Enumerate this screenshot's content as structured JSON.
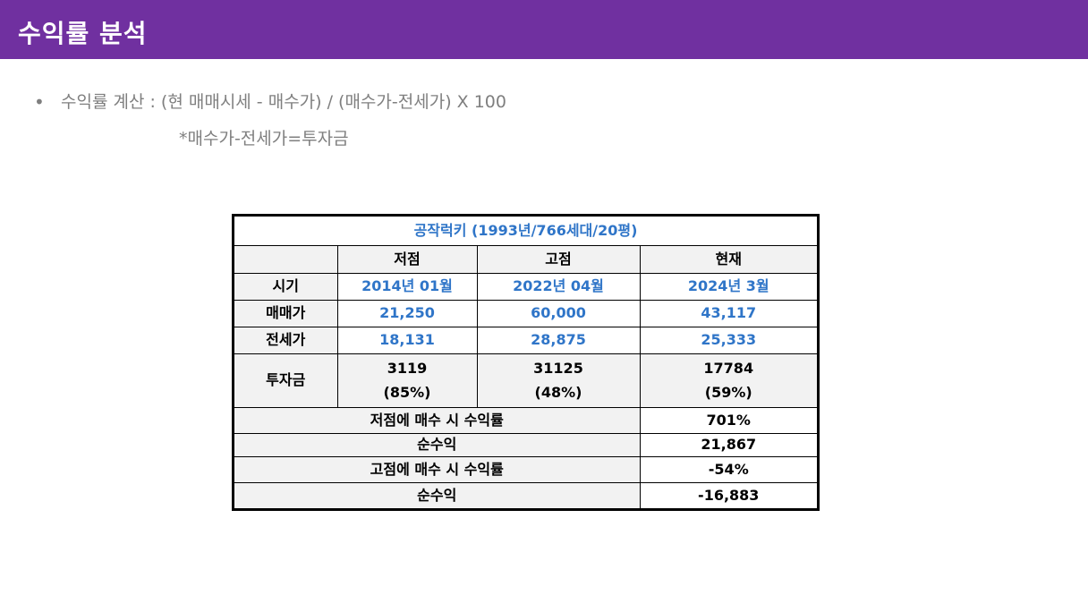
{
  "header": {
    "title": "수익률 분석",
    "color": "#7030a0"
  },
  "formula": {
    "bullet": "•",
    "text": "수익률 계산 : (현 매매시세 - 매수가) / (매수가-전세가) X 100",
    "note": "*매수가-전세가=투자금"
  },
  "table": {
    "title": "공작럭키 (1993년/766세대/20평)",
    "columns": [
      "",
      "저점",
      "고점",
      "현재"
    ],
    "rows": {
      "period": {
        "label": "시기",
        "values": [
          "2014년 01월",
          "2022년 04월",
          "2024년 3월"
        ]
      },
      "sale_price": {
        "label": "매매가",
        "values": [
          "21,250",
          "60,000",
          "43,117"
        ]
      },
      "jeonse_price": {
        "label": "전세가",
        "values": [
          "18,131",
          "28,875",
          "25,333"
        ]
      },
      "investment": {
        "label": "투자금",
        "amounts": [
          "3119",
          "31125",
          "17784"
        ],
        "ratios": [
          "(85%)",
          "(48%)",
          "(59%)"
        ]
      }
    },
    "summary": [
      {
        "label": "저점에 매수 시 수익률",
        "value": "701%"
      },
      {
        "label": "순수익",
        "value": "21,867"
      },
      {
        "label": "고점에 매수 시 수익률",
        "value": "-54%"
      },
      {
        "label": "순수익",
        "value": "-16,883"
      }
    ],
    "colors": {
      "accent": "#2f75c8",
      "header_bg": "#f2f2f2"
    }
  }
}
